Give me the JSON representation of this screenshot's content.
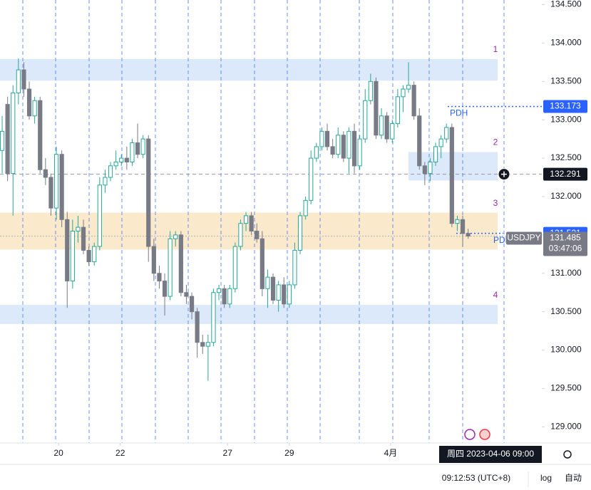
{
  "chart_data": {
    "type": "candlestick",
    "symbol": "USDJPY",
    "open": [
      132.6,
      133.2,
      132.3,
      133.35,
      133.65,
      133.4,
      133.05,
      133.25,
      132.35,
      132.25,
      131.85,
      132.55,
      131.7,
      130.9,
      131.55,
      131.6,
      131.3,
      131.15,
      131.35,
      132.15,
      132.25,
      132.4,
      132.45,
      132.5,
      132.45,
      132.7,
      132.55,
      132.75,
      131.35,
      131.0,
      130.9,
      130.7,
      131.45,
      131.5,
      130.75,
      130.7,
      130.5,
      130.1,
      130.05,
      130.1,
      130.75,
      130.8,
      130.6,
      130.8,
      131.35,
      131.65,
      131.75,
      131.55,
      131.45,
      130.8,
      130.95,
      130.65,
      130.85,
      130.6,
      130.85,
      131.3,
      131.75,
      131.95,
      132.5,
      132.65,
      132.85,
      132.65,
      132.55,
      132.8,
      132.5,
      132.85,
      132.4,
      132.75,
      133.25,
      133.5,
      132.8,
      133.05,
      132.75,
      132.95,
      133.3,
      133.4,
      133.45,
      133.05,
      132.4,
      132.3,
      132.45,
      132.65,
      132.75,
      132.9,
      131.65,
      131.7,
      131.52
    ],
    "high": [
      133.05,
      133.3,
      133.45,
      133.8,
      133.75,
      133.5,
      133.3,
      133.3,
      132.5,
      132.3,
      132.65,
      132.6,
      131.8,
      131.7,
      131.75,
      131.7,
      131.35,
      131.4,
      132.25,
      132.35,
      132.45,
      132.6,
      132.55,
      132.65,
      132.75,
      132.95,
      132.8,
      132.8,
      131.45,
      131.1,
      131.0,
      131.55,
      131.55,
      131.55,
      130.85,
      130.75,
      130.55,
      130.2,
      130.2,
      130.8,
      130.85,
      130.85,
      130.85,
      131.4,
      131.7,
      131.8,
      131.8,
      131.65,
      131.55,
      131.05,
      131.0,
      130.9,
      130.95,
      130.9,
      131.4,
      131.8,
      132.0,
      132.6,
      132.7,
      132.9,
      132.95,
      132.75,
      132.9,
      132.85,
      132.9,
      132.95,
      132.8,
      133.4,
      133.6,
      133.55,
      133.15,
      133.1,
      133.0,
      133.4,
      133.45,
      133.75,
      133.5,
      133.15,
      132.45,
      132.5,
      132.7,
      132.8,
      132.95,
      132.95,
      131.75,
      131.75,
      131.58
    ],
    "low": [
      132.3,
      132.2,
      131.75,
      133.2,
      133.3,
      133.0,
      132.95,
      132.3,
      132.15,
      131.75,
      131.7,
      131.6,
      130.55,
      130.8,
      131.4,
      131.25,
      131.1,
      131.1,
      131.3,
      132.05,
      132.2,
      132.35,
      132.4,
      132.35,
      132.4,
      132.5,
      132.5,
      131.15,
      130.9,
      130.8,
      130.45,
      130.65,
      131.35,
      130.7,
      130.6,
      130.4,
      129.9,
      129.95,
      129.6,
      130.05,
      130.65,
      130.55,
      130.55,
      130.75,
      131.3,
      131.55,
      131.5,
      131.4,
      130.7,
      130.55,
      130.6,
      130.5,
      130.55,
      130.55,
      130.8,
      131.25,
      131.7,
      131.9,
      132.45,
      132.6,
      132.6,
      132.5,
      132.5,
      132.45,
      132.3,
      132.3,
      132.35,
      132.7,
      133.2,
      132.75,
      132.75,
      132.7,
      132.7,
      132.9,
      133.1,
      133.35,
      133.0,
      132.35,
      132.15,
      132.2,
      132.4,
      132.5,
      132.7,
      131.6,
      131.55,
      131.35,
      131.45
    ],
    "close": [
      132.85,
      132.3,
      133.35,
      133.65,
      133.4,
      133.05,
      133.25,
      132.35,
      132.25,
      131.85,
      132.55,
      131.7,
      130.9,
      131.55,
      131.6,
      131.3,
      131.15,
      131.35,
      132.15,
      132.25,
      132.4,
      132.45,
      132.5,
      132.45,
      132.7,
      132.55,
      132.75,
      131.35,
      131.0,
      130.9,
      130.7,
      131.45,
      131.5,
      130.75,
      130.7,
      130.5,
      130.1,
      130.05,
      130.1,
      130.75,
      130.8,
      130.6,
      130.8,
      131.35,
      131.65,
      131.75,
      131.55,
      131.45,
      130.8,
      130.95,
      130.65,
      130.85,
      130.6,
      130.85,
      131.3,
      131.75,
      131.95,
      132.5,
      132.65,
      132.85,
      132.65,
      132.55,
      132.8,
      132.5,
      132.85,
      132.4,
      132.75,
      133.25,
      133.5,
      132.8,
      133.05,
      132.75,
      132.95,
      133.3,
      133.4,
      133.45,
      133.05,
      132.4,
      132.3,
      132.45,
      132.65,
      132.75,
      132.9,
      131.65,
      131.7,
      131.52,
      131.485
    ],
    "up_color": "#26a69a",
    "down_color": "#787b86",
    "xlim": [
      -0.4,
      99.6
    ],
    "xticks": [
      {
        "value": 10.4,
        "label": "20"
      },
      {
        "value": 21.8,
        "label": "22"
      },
      {
        "value": 41.6,
        "label": "27"
      },
      {
        "value": 53,
        "label": "29"
      },
      {
        "value": 71.7,
        "label": "4月"
      }
    ],
    "ylim": [
      128.79,
      134.56
    ],
    "yticks": [
      {
        "value": 129,
        "label": "129.000"
      },
      {
        "value": 129.5,
        "label": "129.500"
      },
      {
        "value": 130,
        "label": "130.000"
      },
      {
        "value": 130.5,
        "label": "130.500"
      },
      {
        "value": 131,
        "label": "131.000"
      },
      {
        "value": 131.5,
        "label": "131.500"
      },
      {
        "value": 132,
        "label": "132.000"
      },
      {
        "value": 132.5,
        "label": "132.500"
      },
      {
        "value": 133,
        "label": "133.000"
      },
      {
        "value": 133.5,
        "label": "133.500"
      },
      {
        "value": 134,
        "label": "134.000"
      },
      {
        "value": 134.5,
        "label": "134.500"
      }
    ],
    "zones": [
      {
        "label": "1",
        "low": 133.51,
        "high": 133.79,
        "color": "#dce9fb"
      },
      {
        "label": "2",
        "low": 132.21,
        "high": 132.58,
        "color": "#dce9fb"
      },
      {
        "label": "3",
        "low": 131.31,
        "high": 131.79,
        "color": "#fbe9cc"
      },
      {
        "label": "4",
        "low": 130.34,
        "high": 130.59,
        "color": "#dce9fb"
      }
    ],
    "pdh": {
      "label": "PDH",
      "value": 133.173
    },
    "pdl": {
      "label": "PDL",
      "value": 131.521
    },
    "crosshair": {
      "value": 132.291,
      "time_label": "周四 2023-04-06 09:00"
    },
    "last_price": 131.485,
    "countdown": "03:47:06",
    "footer": {
      "clock": "09:12:53 (UTC+8)",
      "log": "log",
      "auto": "自动"
    }
  }
}
